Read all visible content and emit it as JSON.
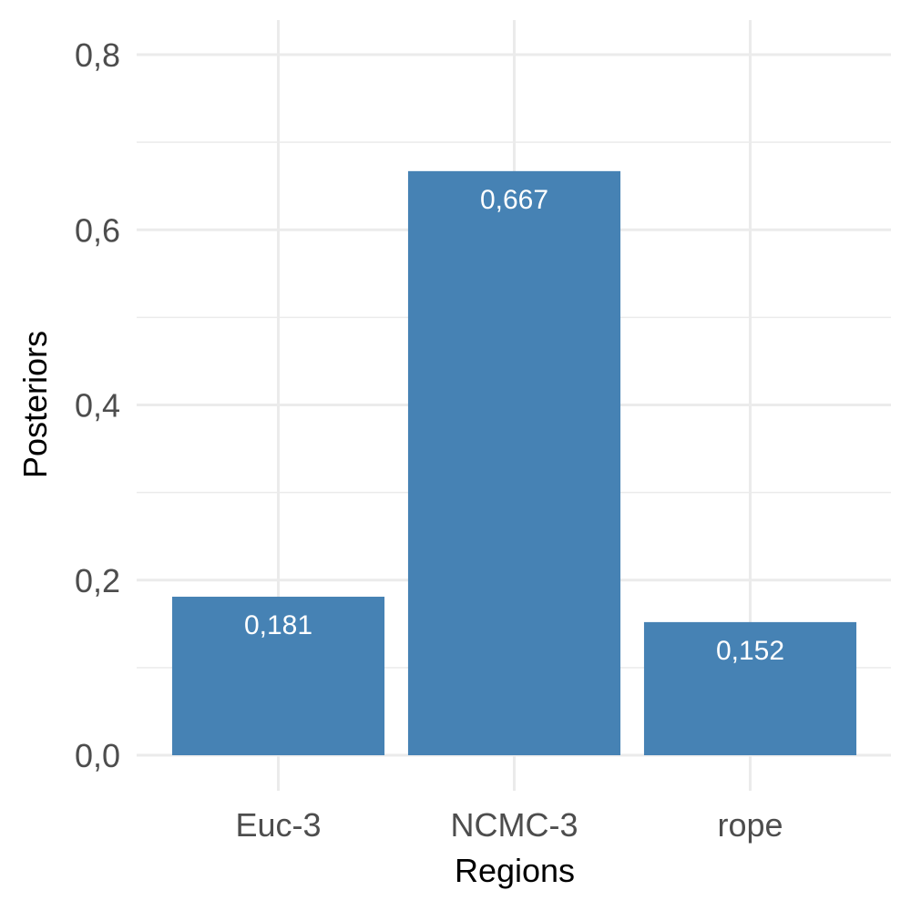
{
  "chart_data": {
    "type": "bar",
    "title": "",
    "xlabel": "Regions",
    "ylabel": "Posteriors",
    "categories": [
      "Euc-3",
      "NCMC-3",
      "rope"
    ],
    "values": [
      0.181,
      0.667,
      0.152
    ],
    "data_labels": [
      "0,181",
      "0,667",
      "0,152"
    ],
    "y_ticks": [
      0.0,
      0.2,
      0.4,
      0.6,
      0.8
    ],
    "y_tick_labels": [
      "0,0",
      "0,2",
      "0,4",
      "0,6",
      "0,8"
    ],
    "y_minor_ticks": [
      0.1,
      0.3,
      0.5,
      0.7
    ],
    "ylim": [
      0,
      0.8
    ],
    "grid": true,
    "legend": "none",
    "bar_color": "#4682b4",
    "label_color": "#ffffff"
  }
}
